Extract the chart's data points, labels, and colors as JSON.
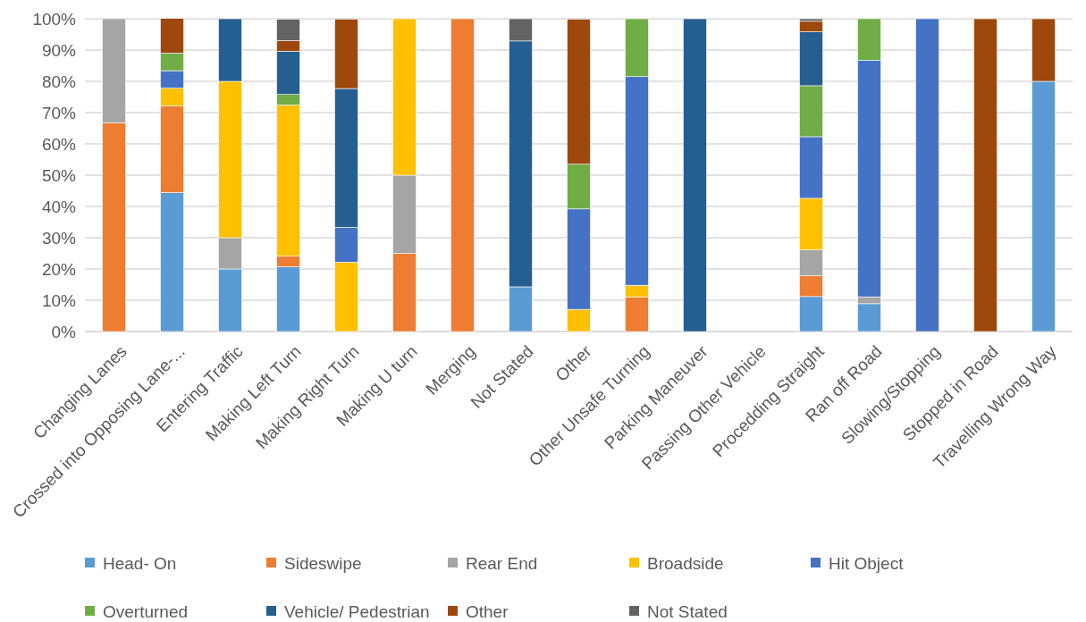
{
  "chart_data": {
    "type": "bar",
    "stacked": true,
    "categories": [
      "Changing Lanes",
      "Crossed into Opposing Lane-...",
      "Entering Traffic",
      "Making Left Turn",
      "Making Right Turn",
      "Making U turn",
      "Merging",
      "Not Stated",
      "Other",
      "Other Unsafe Turning",
      "Parking Maneuver",
      "Passing Other Vehicle",
      "Procedding Straight",
      "Ran off Road",
      "Slowing/Stopping",
      "Stopped in Road",
      "Travelling Wrong Way"
    ],
    "series": [
      {
        "name": "Head- On",
        "color": "#5b9bd5",
        "values": [
          null,
          44.4,
          20,
          20.7,
          null,
          null,
          null,
          14.3,
          null,
          null,
          null,
          null,
          11.2,
          8.9,
          null,
          null,
          80
        ]
      },
      {
        "name": "Sideswipe",
        "color": "#ed7d31",
        "values": [
          66.7,
          27.8,
          null,
          3.4,
          null,
          25,
          100,
          null,
          null,
          11.1,
          null,
          null,
          6.6,
          null,
          null,
          null,
          null
        ]
      },
      {
        "name": "Rear End",
        "color": "#a5a5a5",
        "values": [
          33.3,
          null,
          10,
          null,
          null,
          25,
          null,
          null,
          null,
          null,
          null,
          null,
          8.3,
          2.2,
          null,
          null,
          null
        ]
      },
      {
        "name": "Broadside",
        "color": "#ffc000",
        "values": [
          null,
          5.6,
          50,
          48.3,
          22.2,
          50,
          null,
          null,
          7.1,
          3.7,
          null,
          null,
          16.5,
          null,
          null,
          null,
          null
        ]
      },
      {
        "name": "Hit Object",
        "color": "#4472c4",
        "values": [
          null,
          5.6,
          null,
          null,
          11.1,
          null,
          null,
          null,
          32.1,
          66.7,
          null,
          null,
          19.7,
          75.6,
          100,
          null,
          null
        ]
      },
      {
        "name": "Overturned",
        "color": "#70ad47",
        "values": [
          null,
          5.6,
          null,
          3.4,
          null,
          null,
          null,
          null,
          14.3,
          18.5,
          null,
          null,
          16.3,
          13.3,
          null,
          null,
          null
        ]
      },
      {
        "name": "Vehicle/ Pedestrian",
        "color": "#255e91",
        "values": [
          null,
          null,
          20,
          13.8,
          44.4,
          null,
          null,
          78.6,
          null,
          null,
          100,
          null,
          17.2,
          null,
          null,
          null,
          null
        ]
      },
      {
        "name": "Other",
        "color": "#9e480e",
        "values": [
          null,
          11.1,
          null,
          3.4,
          22.2,
          null,
          null,
          null,
          46.4,
          null,
          null,
          null,
          3.4,
          null,
          null,
          100,
          20
        ]
      },
      {
        "name": "Not Stated",
        "color": "#636363",
        "values": [
          null,
          null,
          null,
          6.9,
          null,
          null,
          null,
          7.1,
          null,
          null,
          null,
          null,
          0.8,
          null,
          null,
          null,
          null
        ]
      }
    ],
    "ylim": [
      0,
      100
    ],
    "yticks": [
      {
        "value": 0,
        "label": "0%"
      },
      {
        "value": 10,
        "label": "10%"
      },
      {
        "value": 20,
        "label": "20%"
      },
      {
        "value": 30,
        "label": "30%"
      },
      {
        "value": 40,
        "label": "40%"
      },
      {
        "value": 50,
        "label": "50%"
      },
      {
        "value": 60,
        "label": "60%"
      },
      {
        "value": 70,
        "label": "70%"
      },
      {
        "value": 80,
        "label": "80%"
      },
      {
        "value": 90,
        "label": "90%"
      },
      {
        "value": 100,
        "label": "100%"
      }
    ],
    "grid": "y",
    "legend": "bottom"
  }
}
